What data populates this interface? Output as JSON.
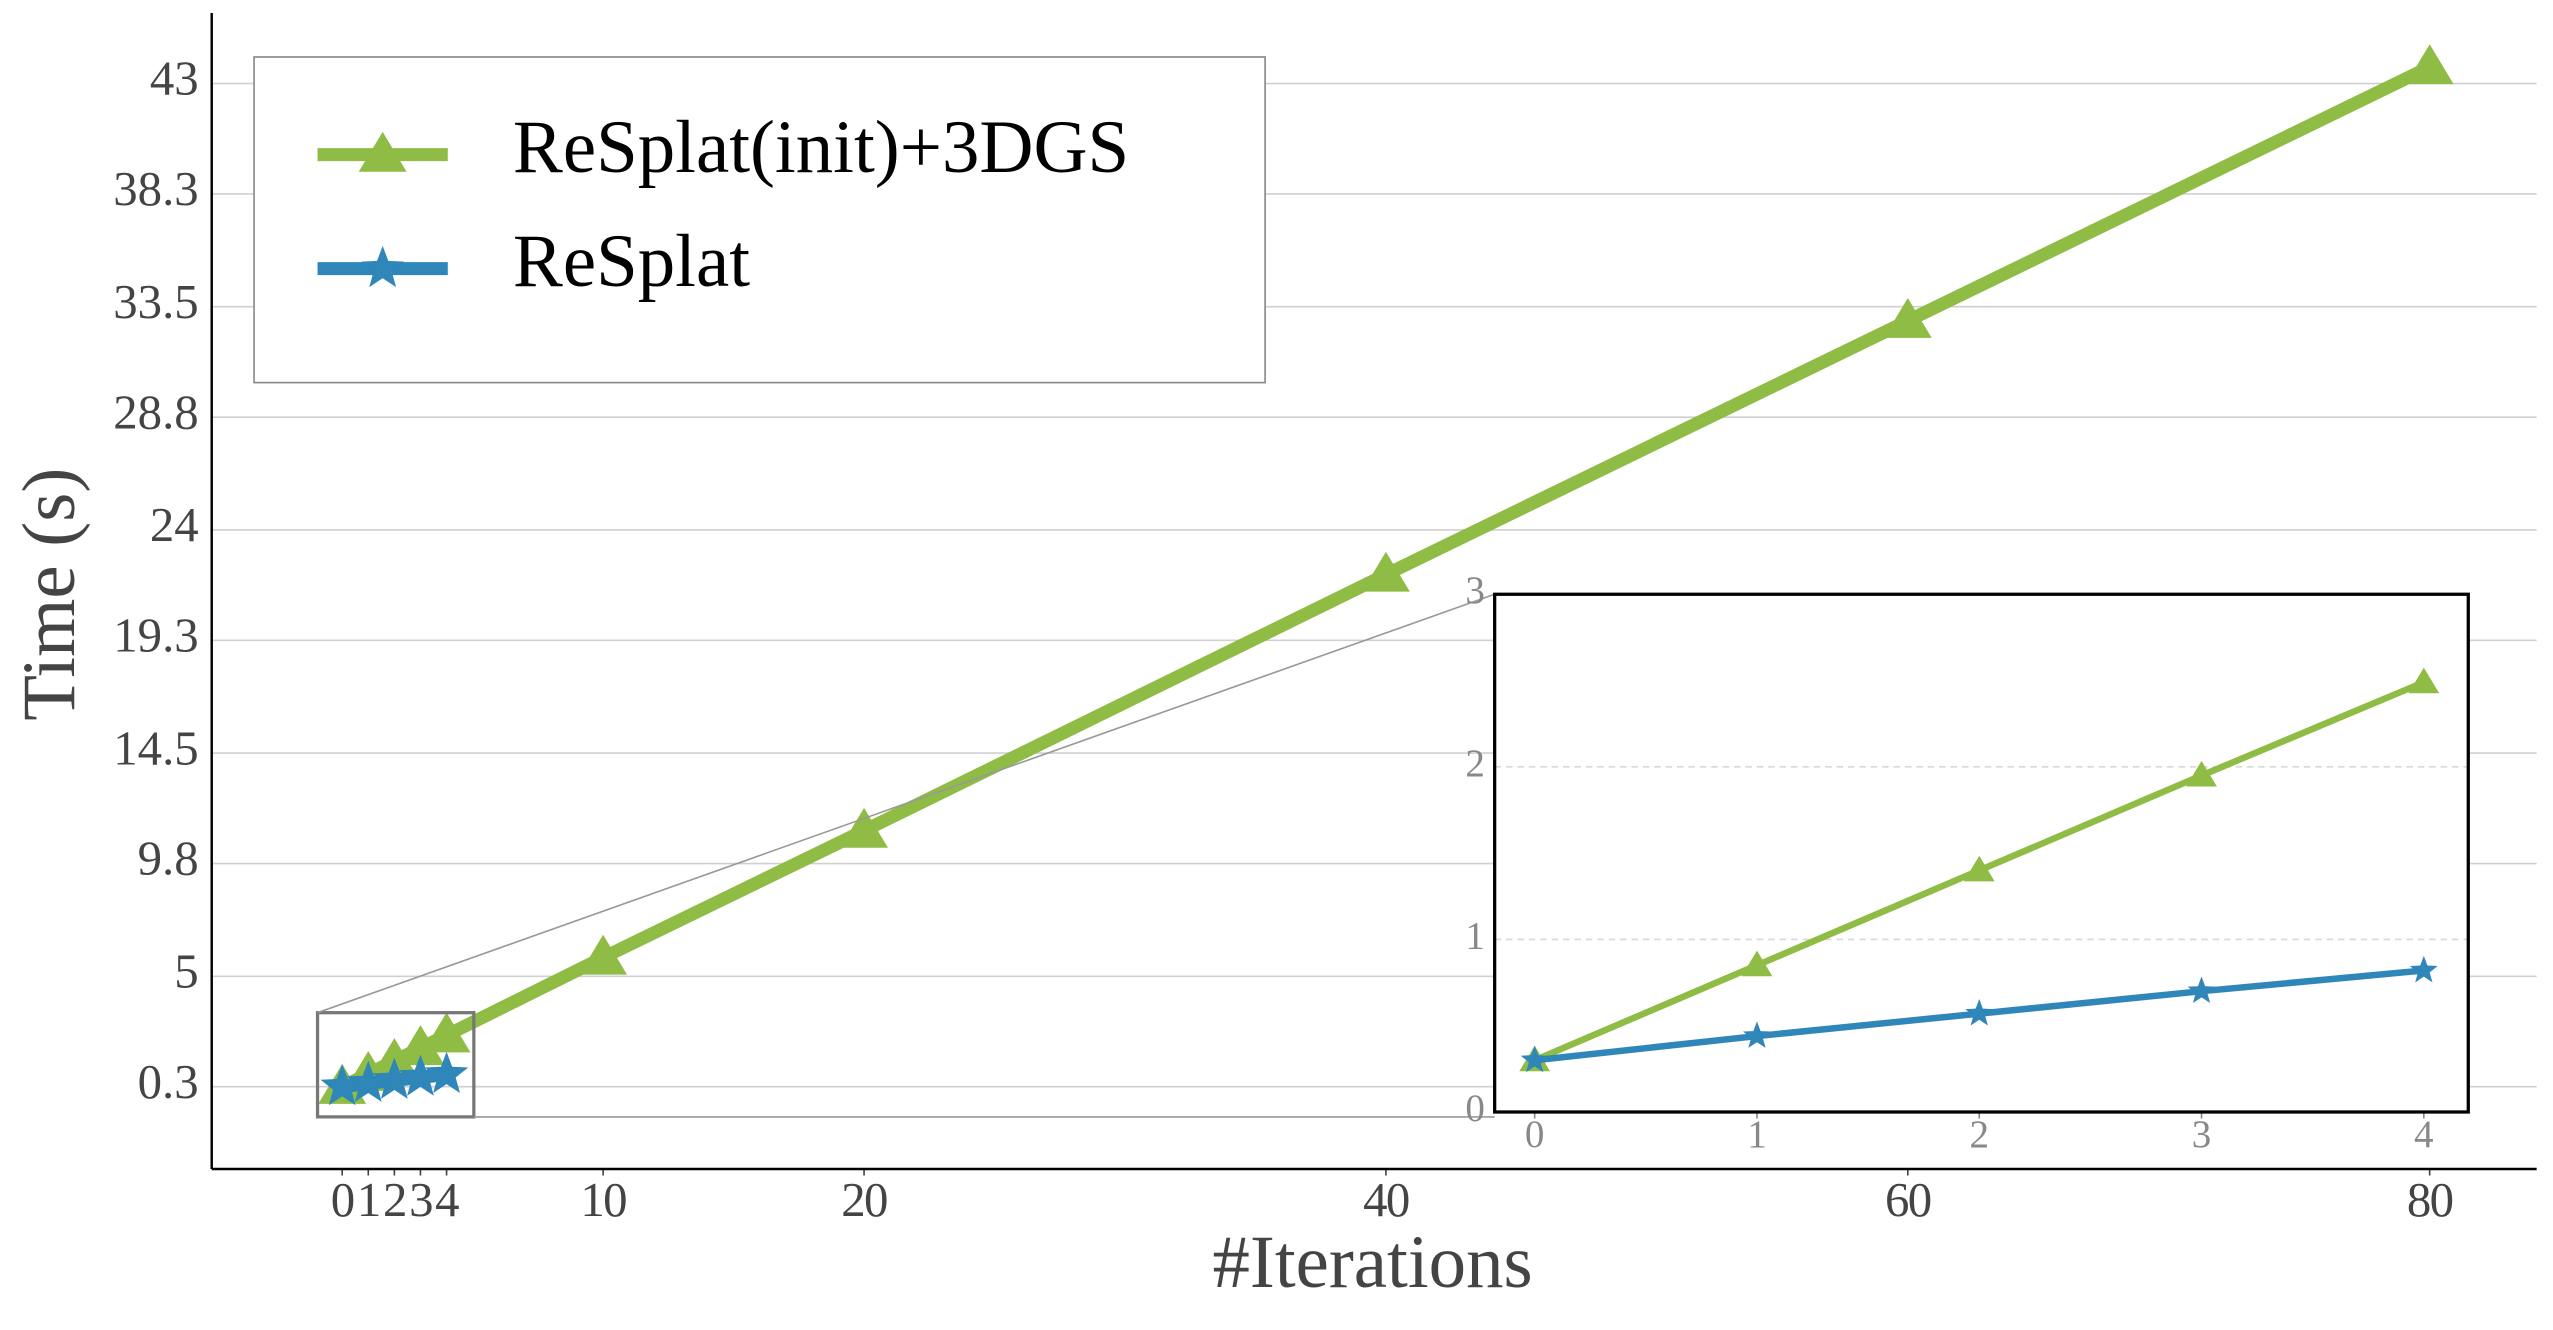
{
  "chart_data": [
    {
      "type": "line",
      "x_label": "#Iterations",
      "y_label": "Time (s)",
      "x": [
        0,
        1,
        2,
        3,
        4,
        10,
        20,
        40,
        60,
        80
      ],
      "series": [
        {
          "name": "ReSplat(init)+3DGS",
          "color": "#8fbc45",
          "marker": "triangle",
          "values": [
            0.3,
            0.85,
            1.4,
            1.95,
            2.49,
            5.8,
            11.2,
            22.1,
            32.9,
            43.7
          ]
        },
        {
          "name": "ReSplat",
          "color": "#2f86b8",
          "marker": "star",
          "values": [
            0.3,
            0.44,
            0.57,
            0.7,
            0.82,
            null,
            null,
            null,
            null,
            null
          ]
        }
      ],
      "xlim": [
        -5,
        84.1
      ],
      "ylim": [
        -3.2,
        46.0
      ],
      "xticks": [
        0,
        1,
        2,
        3,
        4,
        10,
        20,
        40,
        60,
        80
      ],
      "yticks": [
        0.3,
        5.0,
        9.8,
        14.5,
        19.3,
        24.0,
        28.8,
        33.5,
        38.3,
        43.0
      ],
      "grid": true,
      "legend": "upper left"
    },
    {
      "type": "line",
      "x": [
        0,
        1,
        2,
        3,
        4
      ],
      "series": [
        {
          "color": "#8fbc45",
          "marker": "triangle",
          "values": [
            0.3,
            0.85,
            1.4,
            1.95,
            2.49
          ]
        },
        {
          "color": "#2f86b8",
          "marker": "star",
          "values": [
            0.3,
            0.44,
            0.57,
            0.7,
            0.82
          ]
        }
      ],
      "xlim": [
        -0.18,
        4.2
      ],
      "ylim": [
        0,
        3
      ],
      "xticks": [
        0,
        1,
        2,
        3,
        4
      ],
      "yticks": [
        0,
        1,
        2,
        3
      ],
      "grid": true
    }
  ]
}
